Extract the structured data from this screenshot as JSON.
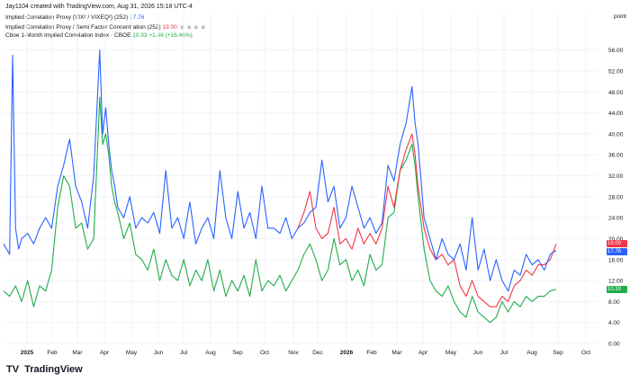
{
  "header": {
    "attribution": "Jay1104 created with TradingView.com, Aug 31, 2026 15:18 UTC-4"
  },
  "legend": [
    {
      "label": "Implied Correlation Proxy (VIX² / VIXEQ²) (252)",
      "value": "17.76",
      "color": "#2962ff"
    },
    {
      "label": "Implied Correlation Proxy / Semi Factor Concentration (252)",
      "value": "19.00",
      "color": "#f23645"
    },
    {
      "label": "Cboe 1-Month Implied Correlation Index · CBOE",
      "value": "10.33",
      "change": "+1.46 (+16.46%)",
      "color": "#22ab4a"
    }
  ],
  "axis": {
    "unit": "point",
    "y_ticks": [
      "56.00",
      "52.00",
      "48.00",
      "44.00",
      "40.00",
      "36.00",
      "32.00",
      "28.00",
      "24.00",
      "20.00",
      "16.00",
      "12.00",
      "8.00",
      "4.00",
      "0.00"
    ],
    "x_ticks": [
      "2025",
      "Feb",
      "Mar",
      "Apr",
      "May",
      "Jun",
      "Jul",
      "Aug",
      "Sep",
      "Oct",
      "Nov",
      "Dec",
      "2026",
      "Feb",
      "Mar",
      "Apr",
      "May",
      "Jun",
      "Jul",
      "Aug",
      "Sep",
      "Oct"
    ]
  },
  "last_values": [
    {
      "value": "19.00",
      "color": "#f23645"
    },
    {
      "value": "17.76",
      "color": "#2962ff"
    },
    {
      "value": "10.33",
      "color": "#22ab4a"
    }
  ],
  "brand": {
    "name": "TradingView",
    "mark": "TV"
  },
  "chart_data": {
    "type": "line",
    "x_range": [
      "2024-12",
      "2026-10"
    ],
    "ylim": [
      0,
      58
    ],
    "series": [
      {
        "name": "Implied Correlation Proxy (VIX² / VIXEQ²) (252)",
        "color": "#2962ff",
        "points": [
          [
            0,
            19
          ],
          [
            1,
            18
          ],
          [
            2,
            17
          ],
          [
            3,
            55
          ],
          [
            4,
            22
          ],
          [
            5,
            18
          ],
          [
            6,
            20
          ],
          [
            8,
            21
          ],
          [
            10,
            19
          ],
          [
            12,
            22
          ],
          [
            14,
            24
          ],
          [
            16,
            22
          ],
          [
            18,
            30
          ],
          [
            20,
            34
          ],
          [
            22,
            39
          ],
          [
            24,
            30
          ],
          [
            26,
            27
          ],
          [
            28,
            22
          ],
          [
            30,
            32
          ],
          [
            32,
            56
          ],
          [
            33,
            40
          ],
          [
            34,
            45
          ],
          [
            35,
            38
          ],
          [
            36,
            33
          ],
          [
            37,
            30
          ],
          [
            38,
            26
          ],
          [
            40,
            24
          ],
          [
            42,
            28
          ],
          [
            44,
            22
          ],
          [
            46,
            24
          ],
          [
            48,
            23
          ],
          [
            50,
            25
          ],
          [
            52,
            21
          ],
          [
            54,
            33
          ],
          [
            56,
            22
          ],
          [
            58,
            24
          ],
          [
            60,
            20
          ],
          [
            62,
            27
          ],
          [
            64,
            19
          ],
          [
            66,
            22
          ],
          [
            68,
            24
          ],
          [
            70,
            20
          ],
          [
            72,
            33
          ],
          [
            74,
            24
          ],
          [
            76,
            20
          ],
          [
            78,
            29
          ],
          [
            80,
            22
          ],
          [
            82,
            25
          ],
          [
            84,
            20
          ],
          [
            86,
            30
          ],
          [
            88,
            22
          ],
          [
            90,
            22
          ],
          [
            92,
            21
          ],
          [
            94,
            24
          ],
          [
            96,
            20
          ],
          [
            98,
            22
          ],
          [
            100,
            23
          ],
          [
            102,
            25
          ],
          [
            104,
            26
          ],
          [
            106,
            35
          ],
          [
            108,
            27
          ],
          [
            110,
            30
          ],
          [
            112,
            22
          ],
          [
            114,
            24
          ],
          [
            116,
            30
          ],
          [
            118,
            26
          ],
          [
            120,
            22
          ],
          [
            122,
            24
          ],
          [
            124,
            21
          ],
          [
            126,
            23
          ],
          [
            128,
            34
          ],
          [
            130,
            31
          ],
          [
            132,
            38
          ],
          [
            134,
            42
          ],
          [
            136,
            49
          ],
          [
            137,
            42
          ],
          [
            138,
            38
          ],
          [
            140,
            24
          ],
          [
            142,
            20
          ],
          [
            144,
            16
          ],
          [
            146,
            20
          ],
          [
            148,
            17
          ],
          [
            150,
            16
          ],
          [
            152,
            19
          ],
          [
            154,
            14
          ],
          [
            156,
            24
          ],
          [
            158,
            14
          ],
          [
            160,
            18
          ],
          [
            162,
            12
          ],
          [
            164,
            16
          ],
          [
            166,
            12
          ],
          [
            168,
            10
          ],
          [
            170,
            14
          ],
          [
            172,
            13
          ],
          [
            174,
            17
          ],
          [
            176,
            15
          ],
          [
            178,
            16
          ],
          [
            180,
            14
          ],
          [
            182,
            17
          ],
          [
            184,
            17.76
          ]
        ]
      },
      {
        "name": "Implied Correlation Proxy / Semi Factor Concentration (252)",
        "color": "#f23645",
        "points": [
          [
            98,
            22
          ],
          [
            100,
            25
          ],
          [
            102,
            29
          ],
          [
            104,
            22
          ],
          [
            106,
            20
          ],
          [
            108,
            21
          ],
          [
            110,
            26
          ],
          [
            112,
            19
          ],
          [
            114,
            20
          ],
          [
            116,
            18
          ],
          [
            118,
            22
          ],
          [
            120,
            19
          ],
          [
            122,
            21
          ],
          [
            124,
            19
          ],
          [
            126,
            22
          ],
          [
            128,
            30
          ],
          [
            130,
            26
          ],
          [
            132,
            33
          ],
          [
            134,
            37
          ],
          [
            136,
            40
          ],
          [
            137,
            36
          ],
          [
            138,
            30
          ],
          [
            140,
            22
          ],
          [
            142,
            18
          ],
          [
            144,
            16
          ],
          [
            146,
            17
          ],
          [
            148,
            15
          ],
          [
            150,
            16
          ],
          [
            152,
            11
          ],
          [
            154,
            9
          ],
          [
            156,
            12
          ],
          [
            158,
            9
          ],
          [
            160,
            8
          ],
          [
            162,
            7
          ],
          [
            164,
            7
          ],
          [
            166,
            9
          ],
          [
            168,
            8
          ],
          [
            170,
            11
          ],
          [
            172,
            12
          ],
          [
            174,
            14
          ],
          [
            176,
            13
          ],
          [
            178,
            15
          ],
          [
            180,
            15
          ],
          [
            182,
            16
          ],
          [
            184,
            19
          ]
        ]
      },
      {
        "name": "Cboe 1-Month Implied Correlation Index · CBOE",
        "color": "#22ab4a",
        "points": [
          [
            0,
            10
          ],
          [
            2,
            9
          ],
          [
            4,
            11
          ],
          [
            6,
            8
          ],
          [
            8,
            12
          ],
          [
            10,
            7
          ],
          [
            12,
            11
          ],
          [
            14,
            10
          ],
          [
            16,
            14
          ],
          [
            18,
            26
          ],
          [
            20,
            32
          ],
          [
            22,
            30
          ],
          [
            24,
            22
          ],
          [
            26,
            23
          ],
          [
            28,
            18
          ],
          [
            30,
            20
          ],
          [
            32,
            47
          ],
          [
            33,
            38
          ],
          [
            34,
            40
          ],
          [
            35,
            36
          ],
          [
            36,
            30
          ],
          [
            37,
            27
          ],
          [
            38,
            25
          ],
          [
            40,
            20
          ],
          [
            42,
            23
          ],
          [
            44,
            17
          ],
          [
            46,
            16
          ],
          [
            48,
            14
          ],
          [
            50,
            18
          ],
          [
            52,
            12
          ],
          [
            54,
            16
          ],
          [
            56,
            13
          ],
          [
            58,
            12
          ],
          [
            60,
            16
          ],
          [
            62,
            11
          ],
          [
            64,
            14
          ],
          [
            66,
            12
          ],
          [
            68,
            16
          ],
          [
            70,
            10
          ],
          [
            72,
            14
          ],
          [
            74,
            9
          ],
          [
            76,
            12
          ],
          [
            78,
            10
          ],
          [
            80,
            13
          ],
          [
            82,
            9
          ],
          [
            84,
            16
          ],
          [
            86,
            10
          ],
          [
            88,
            12
          ],
          [
            90,
            11
          ],
          [
            92,
            13
          ],
          [
            94,
            10
          ],
          [
            96,
            12
          ],
          [
            98,
            14
          ],
          [
            100,
            17
          ],
          [
            102,
            19
          ],
          [
            104,
            16
          ],
          [
            106,
            12
          ],
          [
            108,
            14
          ],
          [
            110,
            20
          ],
          [
            112,
            15
          ],
          [
            114,
            16
          ],
          [
            116,
            12
          ],
          [
            118,
            14
          ],
          [
            120,
            11
          ],
          [
            122,
            17
          ],
          [
            124,
            14
          ],
          [
            126,
            15
          ],
          [
            128,
            24
          ],
          [
            130,
            25
          ],
          [
            132,
            33
          ],
          [
            134,
            35
          ],
          [
            136,
            38
          ],
          [
            137,
            34
          ],
          [
            138,
            28
          ],
          [
            140,
            18
          ],
          [
            142,
            12
          ],
          [
            144,
            10
          ],
          [
            146,
            9
          ],
          [
            148,
            11
          ],
          [
            150,
            8
          ],
          [
            152,
            6
          ],
          [
            154,
            5
          ],
          [
            156,
            9
          ],
          [
            158,
            6
          ],
          [
            160,
            5
          ],
          [
            162,
            4
          ],
          [
            164,
            5
          ],
          [
            166,
            8
          ],
          [
            168,
            6
          ],
          [
            170,
            8
          ],
          [
            172,
            7
          ],
          [
            174,
            9
          ],
          [
            176,
            8
          ],
          [
            178,
            9
          ],
          [
            180,
            9
          ],
          [
            182,
            10
          ],
          [
            184,
            10.33
          ]
        ]
      }
    ],
    "grid": true,
    "legend_position": "top-left"
  }
}
